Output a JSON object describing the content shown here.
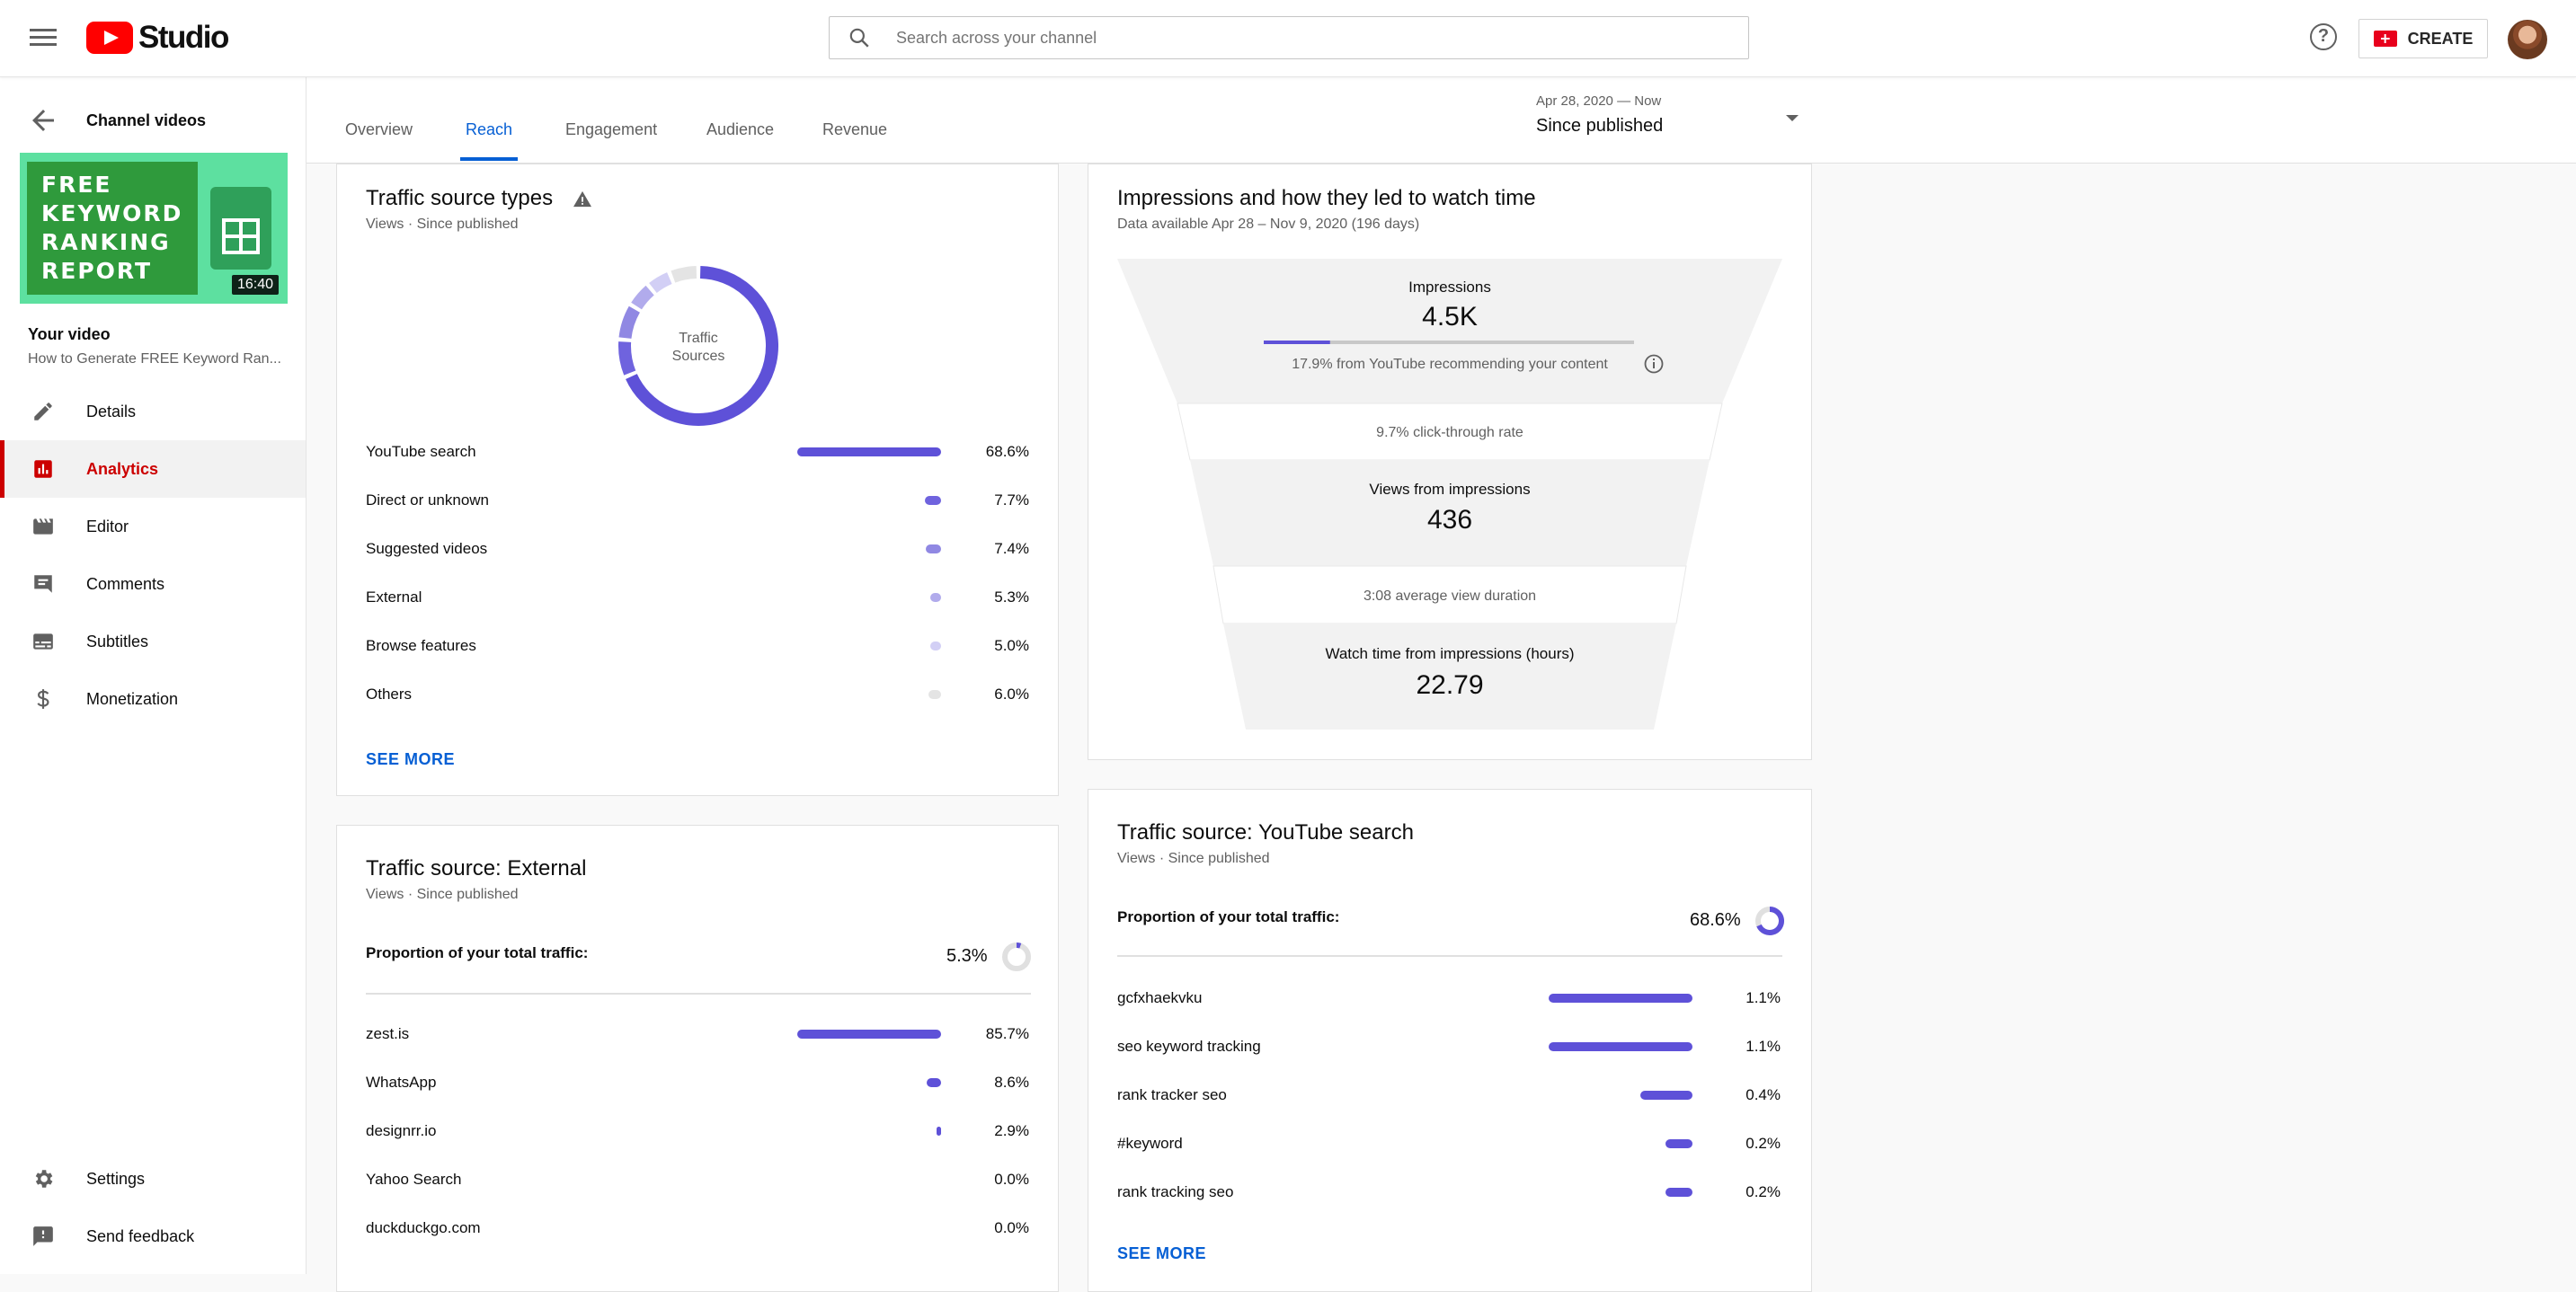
{
  "app": {
    "logo_text": "Studio",
    "search_placeholder": "Search across your channel",
    "help_symbol": "?",
    "create_label": "CREATE"
  },
  "sidebar": {
    "back_label": "Channel videos",
    "thumbnail_lines": [
      "FREE",
      "KEYWORD",
      "RANKING",
      "REPORT"
    ],
    "duration": "16:40",
    "your_video_label": "Your video",
    "video_title": "How to Generate FREE Keyword Ran...",
    "items": [
      {
        "label": "Details",
        "icon": "pencil-icon",
        "active": false
      },
      {
        "label": "Analytics",
        "icon": "analytics-icon",
        "active": true
      },
      {
        "label": "Editor",
        "icon": "clapperboard-icon",
        "active": false
      },
      {
        "label": "Comments",
        "icon": "comment-icon",
        "active": false
      },
      {
        "label": "Subtitles",
        "icon": "subtitles-icon",
        "active": false
      },
      {
        "label": "Monetization",
        "icon": "dollar-icon",
        "active": false
      }
    ],
    "bottom_items": [
      {
        "label": "Settings",
        "icon": "gear-icon"
      },
      {
        "label": "Send feedback",
        "icon": "feedback-icon"
      }
    ]
  },
  "tabs": [
    {
      "label": "Overview",
      "active": false
    },
    {
      "label": "Reach",
      "active": true
    },
    {
      "label": "Engagement",
      "active": false
    },
    {
      "label": "Audience",
      "active": false
    },
    {
      "label": "Revenue",
      "active": false
    }
  ],
  "date_range": {
    "small": "Apr 28, 2020 — Now",
    "main": "Since published"
  },
  "traffic_source_types": {
    "title": "Traffic source types",
    "subtitle": "Views · Since published",
    "donut_center": [
      "Traffic",
      "Sources"
    ],
    "rows": [
      {
        "label": "YouTube search",
        "value": "68.6%",
        "pct": 68.6,
        "color": "#5e51d8"
      },
      {
        "label": "Direct or unknown",
        "value": "7.7%",
        "pct": 7.7,
        "color": "#6f63de"
      },
      {
        "label": "Suggested videos",
        "value": "7.4%",
        "pct": 7.4,
        "color": "#9088e3"
      },
      {
        "label": "External",
        "value": "5.3%",
        "pct": 5.3,
        "color": "#b1abec"
      },
      {
        "label": "Browse features",
        "value": "5.0%",
        "pct": 5.0,
        "color": "#d2cff5"
      },
      {
        "label": "Others",
        "value": "6.0%",
        "pct": 6.0,
        "color": "#e4e4e4"
      }
    ],
    "see_more": "SEE MORE"
  },
  "impressions_funnel": {
    "title": "Impressions and how they led to watch time",
    "subtitle": "Data available Apr 28 – Nov 9, 2020 (196 days)",
    "impressions_label": "Impressions",
    "impressions_value": "4.5K",
    "recommend_share": 0.179,
    "recommend_text": "17.9% from YouTube recommending your content",
    "ctr_text": "9.7% click-through rate",
    "views_label": "Views from impressions",
    "views_value": "436",
    "avd_text": "3:08 average view duration",
    "watch_label": "Watch time from impressions (hours)",
    "watch_value": "22.79"
  },
  "traffic_external": {
    "title": "Traffic source: External",
    "subtitle": "Views · Since published",
    "proportion_label": "Proportion of your total traffic:",
    "proportion_value": "5.3%",
    "proportion_pct": 5.3,
    "rows": [
      {
        "label": "zest.is",
        "value": "85.7%",
        "pct": 85.7
      },
      {
        "label": "WhatsApp",
        "value": "8.6%",
        "pct": 8.6
      },
      {
        "label": "designrr.io",
        "value": "2.9%",
        "pct": 2.9
      },
      {
        "label": "Yahoo Search",
        "value": "0.0%",
        "pct": 0.0
      },
      {
        "label": "duckduckgo.com",
        "value": "0.0%",
        "pct": 0.0
      }
    ]
  },
  "traffic_youtube_search": {
    "title": "Traffic source: YouTube search",
    "subtitle": "Views · Since published",
    "proportion_label": "Proportion of your total traffic:",
    "proportion_value": "68.6%",
    "proportion_pct": 68.6,
    "rows": [
      {
        "label": "gcfxhaekvku",
        "value": "1.1%",
        "pct": 1.1
      },
      {
        "label": "seo keyword tracking",
        "value": "1.1%",
        "pct": 1.1
      },
      {
        "label": "rank tracker seo",
        "value": "0.4%",
        "pct": 0.4
      },
      {
        "label": "#keyword",
        "value": "0.2%",
        "pct": 0.2
      },
      {
        "label": "rank tracking seo",
        "value": "0.2%",
        "pct": 0.2
      }
    ],
    "see_more": "SEE MORE"
  }
}
